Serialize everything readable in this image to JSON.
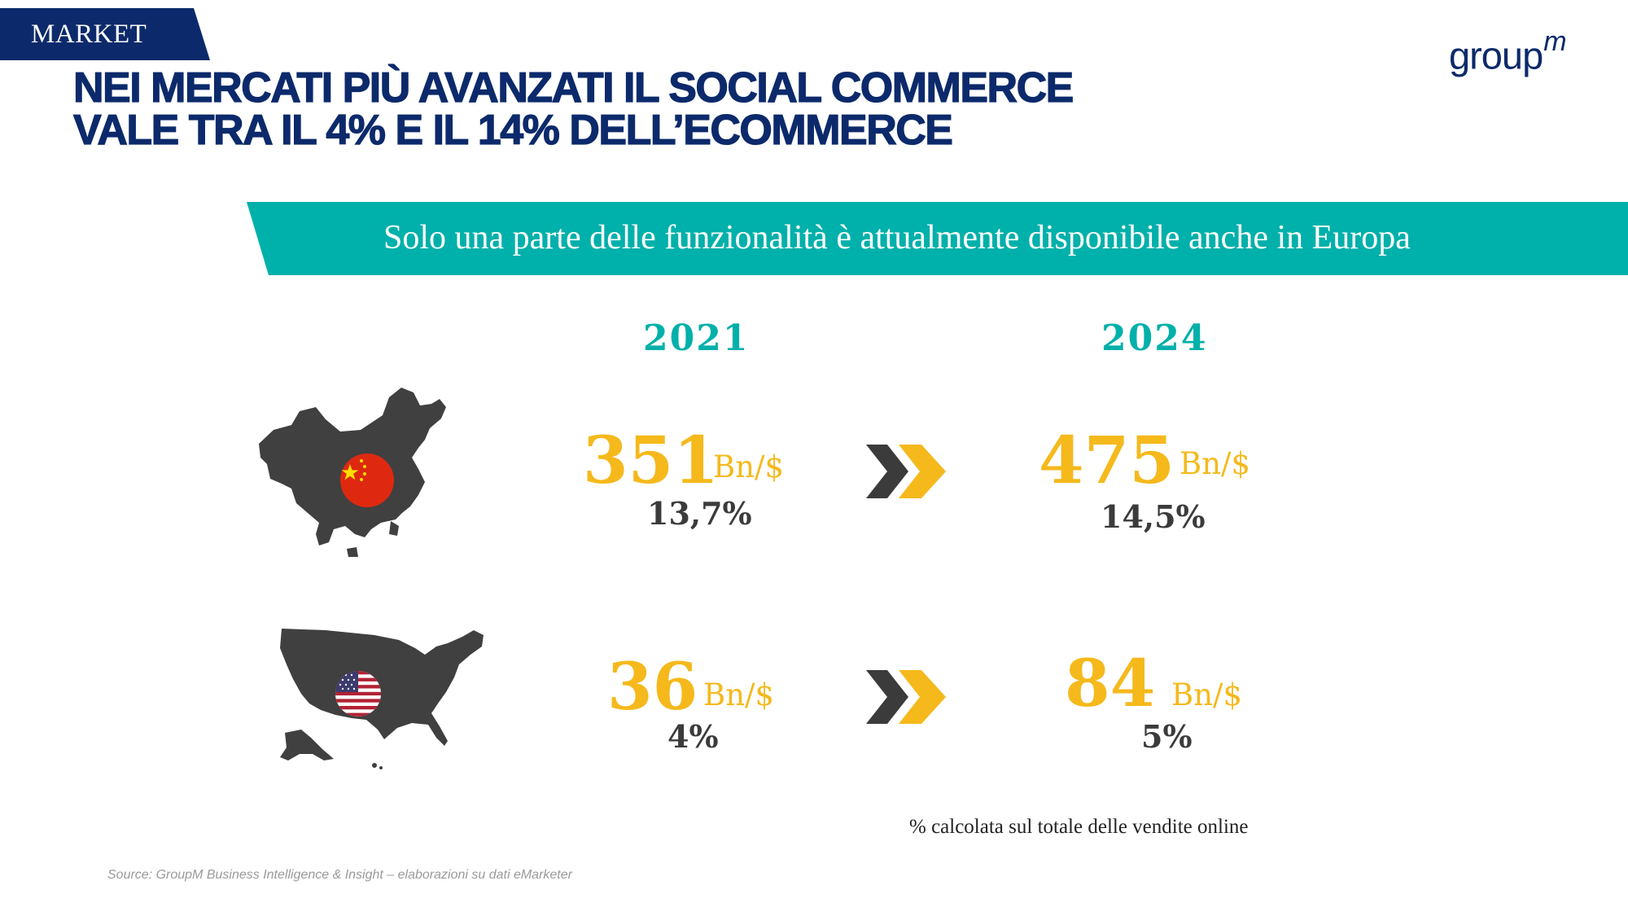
{
  "section_tag": "MARKET",
  "title": {
    "line1": "NEI MERCATI PIÙ AVANZATI IL SOCIAL COMMERCE",
    "line2": "VALE TRA IL 4% E IL 14% DELL’ECOMMERCE"
  },
  "logo": {
    "text": "group",
    "suffix": "m"
  },
  "banner": "Solo una parte delle funzionalità è attualmente disponibile anche in Europa",
  "years": {
    "left": "2021",
    "right": "2024"
  },
  "rows": [
    {
      "country": "China",
      "map_icon": "china-map-with-flag",
      "value_2021": "351",
      "unit_2021": "Bn/$",
      "share_2021": "13,7%",
      "value_2024": "475",
      "unit_2024": "Bn/$",
      "share_2024": "14,5%"
    },
    {
      "country": "USA",
      "map_icon": "usa-map-with-flag",
      "value_2021": "36",
      "unit_2021": "Bn/$",
      "share_2021": "4%",
      "value_2024": "84",
      "unit_2024": "Bn/$",
      "share_2024": "5%"
    }
  ],
  "note": "% calcolata sul totale delle vendite online",
  "source": "Source: GroupM Business Intelligence & Insight – elaborazioni su dati eMarketer",
  "colors": {
    "navy": "#0c2a6b",
    "teal": "#00b0aa",
    "gold": "#f5b91c",
    "dark_gray": "#3b3b3b",
    "map_gray": "#404040",
    "china_red": "#de2910"
  }
}
